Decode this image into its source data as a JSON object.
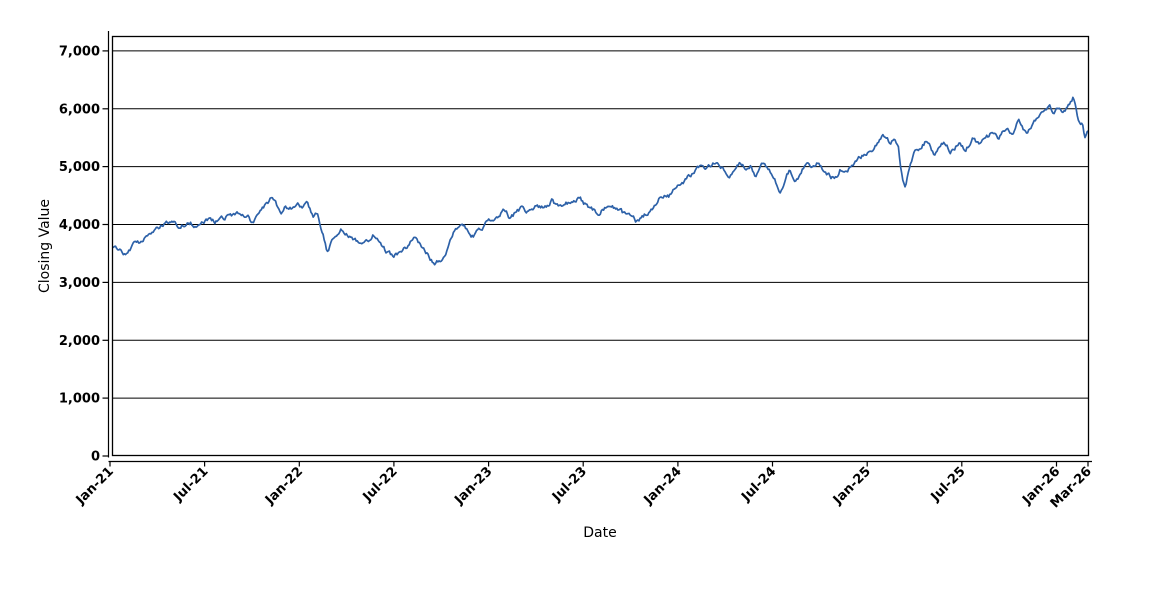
{
  "chart_data": {
    "type": "line",
    "title": "",
    "xlabel": "Date",
    "ylabel": "Closing Value",
    "legend": "none",
    "grid": "horizontal",
    "background_color": "#ffffff",
    "axis_color": "#000000",
    "xlim_months": [
      0,
      62
    ],
    "x_axis_range": [
      "Jan-21",
      "Mar-26"
    ],
    "ylim": [
      0,
      7240
    ],
    "x_ticks": [
      {
        "m": 0,
        "label": "Jan-21"
      },
      {
        "m": 6,
        "label": "Jul-21"
      },
      {
        "m": 12,
        "label": "Jan-22"
      },
      {
        "m": 18,
        "label": "Jul-22"
      },
      {
        "m": 24,
        "label": "Jan-23"
      },
      {
        "m": 30,
        "label": "Jul-23"
      },
      {
        "m": 36,
        "label": "Jan-24"
      },
      {
        "m": 42,
        "label": "Jul-24"
      },
      {
        "m": 48,
        "label": "Jan-25"
      },
      {
        "m": 54,
        "label": "Jul-25"
      },
      {
        "m": 60,
        "label": "Jan-26"
      },
      {
        "m": 62,
        "label": "Mar-26"
      }
    ],
    "y_ticks": [
      {
        "v": 0,
        "label": "0"
      },
      {
        "v": 1000,
        "label": "1,000"
      },
      {
        "v": 2000,
        "label": "2,000"
      },
      {
        "v": 3000,
        "label": "3,000"
      },
      {
        "v": 4000,
        "label": "4,000"
      },
      {
        "v": 5000,
        "label": "5,000"
      },
      {
        "v": 6000,
        "label": "6,000"
      },
      {
        "v": 7000,
        "label": "7,000"
      }
    ],
    "series": [
      {
        "name": "closing-value",
        "color": "#2d61a8",
        "x_unit": "months since Jan-2021 (0 = Jan-21)",
        "noise": 70,
        "anchor_points": [
          [
            0.0,
            3640
          ],
          [
            0.5,
            3585
          ],
          [
            1.05,
            3495
          ],
          [
            1.5,
            3640
          ],
          [
            2.1,
            3730
          ],
          [
            2.7,
            3840
          ],
          [
            3.36,
            4000
          ],
          [
            3.9,
            4020
          ],
          [
            4.3,
            3990
          ],
          [
            4.9,
            4040
          ],
          [
            5.4,
            4000
          ],
          [
            6.0,
            4050
          ],
          [
            6.35,
            4090
          ],
          [
            6.65,
            4041
          ],
          [
            7.3,
            4120
          ],
          [
            7.9,
            4185
          ],
          [
            8.3,
            4150
          ],
          [
            8.75,
            4100
          ],
          [
            9.0,
            4014
          ],
          [
            9.6,
            4271
          ],
          [
            10.15,
            4430
          ],
          [
            10.5,
            4350
          ],
          [
            10.8,
            4130
          ],
          [
            11.1,
            4270
          ],
          [
            11.35,
            4220
          ],
          [
            11.9,
            4390
          ],
          [
            12.2,
            4270
          ],
          [
            12.5,
            4330
          ],
          [
            12.9,
            4150
          ],
          [
            13.15,
            4220
          ],
          [
            13.45,
            3900
          ],
          [
            13.8,
            3520
          ],
          [
            14.1,
            3760
          ],
          [
            14.6,
            3940
          ],
          [
            15.2,
            3830
          ],
          [
            16.05,
            3640
          ],
          [
            16.7,
            3840
          ],
          [
            17.3,
            3560
          ],
          [
            17.9,
            3437
          ],
          [
            18.4,
            3520
          ],
          [
            18.8,
            3610
          ],
          [
            19.2,
            3784
          ],
          [
            19.7,
            3650
          ],
          [
            20.1,
            3500
          ],
          [
            20.6,
            3292
          ],
          [
            21.2,
            3450
          ],
          [
            21.9,
            3985
          ],
          [
            22.5,
            3940
          ],
          [
            23.0,
            3810
          ],
          [
            23.6,
            3960
          ],
          [
            24.0,
            4070
          ],
          [
            24.5,
            4150
          ],
          [
            25.0,
            4244
          ],
          [
            25.4,
            4100
          ],
          [
            26.1,
            4302
          ],
          [
            26.5,
            4230
          ],
          [
            27.0,
            4310
          ],
          [
            27.5,
            4280
          ],
          [
            28.0,
            4417
          ],
          [
            28.4,
            4300
          ],
          [
            28.9,
            4370
          ],
          [
            29.4,
            4420
          ],
          [
            29.7,
            4475
          ],
          [
            30.2,
            4330
          ],
          [
            30.9,
            4215
          ],
          [
            31.6,
            4330
          ],
          [
            32.2,
            4240
          ],
          [
            32.7,
            4150
          ],
          [
            33.4,
            4042
          ],
          [
            34.2,
            4215
          ],
          [
            34.9,
            4500
          ],
          [
            35.4,
            4480
          ],
          [
            36.0,
            4706
          ],
          [
            36.4,
            4750
          ],
          [
            36.8,
            4850
          ],
          [
            37.3,
            4965
          ],
          [
            37.8,
            5000
          ],
          [
            38.3,
            5080
          ],
          [
            38.7,
            4990
          ],
          [
            39.3,
            4879
          ],
          [
            39.9,
            5109
          ],
          [
            40.3,
            4965
          ],
          [
            40.6,
            5022
          ],
          [
            40.9,
            4821
          ],
          [
            41.2,
            5022
          ],
          [
            41.5,
            5080
          ],
          [
            42.0,
            4850
          ],
          [
            42.3,
            4706
          ],
          [
            42.5,
            4590
          ],
          [
            42.7,
            4640
          ],
          [
            42.9,
            4879
          ],
          [
            43.1,
            4936
          ],
          [
            43.5,
            4763
          ],
          [
            43.8,
            4900
          ],
          [
            44.2,
            5080
          ],
          [
            44.5,
            4994
          ],
          [
            44.8,
            5051
          ],
          [
            45.35,
            4907
          ],
          [
            45.7,
            4821
          ],
          [
            46.0,
            4790
          ],
          [
            46.3,
            4960
          ],
          [
            46.6,
            4905
          ],
          [
            47.15,
            5051
          ],
          [
            47.5,
            5137
          ],
          [
            47.8,
            5195
          ],
          [
            48.2,
            5310
          ],
          [
            48.6,
            5397
          ],
          [
            48.9,
            5513
          ],
          [
            49.15,
            5541
          ],
          [
            49.45,
            5426
          ],
          [
            49.65,
            5484
          ],
          [
            49.97,
            5310
          ],
          [
            50.15,
            4900
          ],
          [
            50.38,
            4630
          ],
          [
            50.7,
            4965
          ],
          [
            51.0,
            5281
          ],
          [
            51.35,
            5339
          ],
          [
            51.8,
            5455
          ],
          [
            52.3,
            5195
          ],
          [
            52.85,
            5426
          ],
          [
            53.3,
            5281
          ],
          [
            53.9,
            5426
          ],
          [
            54.2,
            5252
          ],
          [
            54.7,
            5484
          ],
          [
            55.2,
            5368
          ],
          [
            55.9,
            5570
          ],
          [
            56.3,
            5455
          ],
          [
            56.9,
            5686
          ],
          [
            57.25,
            5541
          ],
          [
            57.6,
            5780
          ],
          [
            57.9,
            5628
          ],
          [
            58.15,
            5541
          ],
          [
            58.65,
            5800
          ],
          [
            59.0,
            5887
          ],
          [
            59.3,
            6032
          ],
          [
            59.55,
            6089
          ],
          [
            59.8,
            5916
          ],
          [
            60.15,
            6003
          ],
          [
            60.5,
            5945
          ],
          [
            60.8,
            6050
          ],
          [
            61.05,
            6205
          ],
          [
            61.35,
            5859
          ],
          [
            61.5,
            5714
          ],
          [
            61.62,
            5800
          ],
          [
            61.82,
            5513
          ],
          [
            62.0,
            5628
          ]
        ]
      }
    ]
  }
}
